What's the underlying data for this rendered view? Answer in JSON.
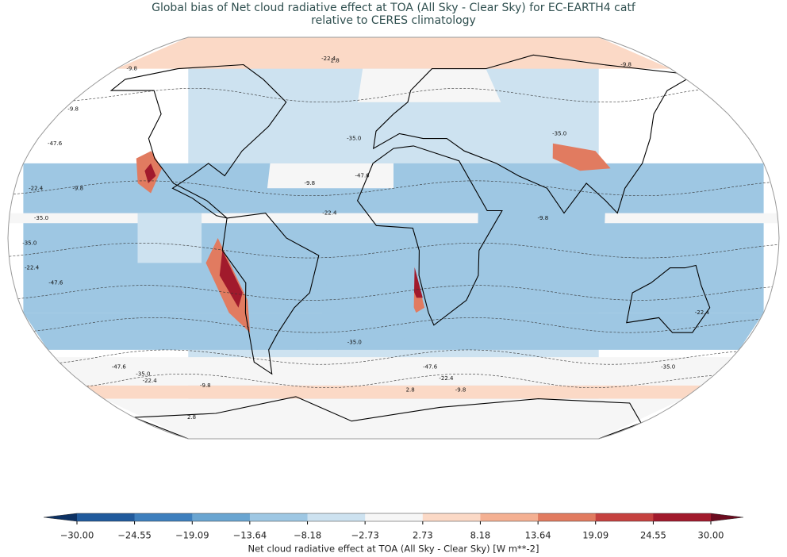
{
  "title": "Global bias of Net cloud radiative effect at TOA (All Sky - Clear Sky) for EC-EARTH4 catf",
  "subtitle": "relative to CERES climatology",
  "colorbar": {
    "label": "Net cloud radiative effect at TOA (All Sky - Clear Sky) [W m**-2]",
    "ticks": [
      {
        "value": -30,
        "label": "−30.00"
      },
      {
        "value": -24.55,
        "label": "−24.55"
      },
      {
        "value": -19.09,
        "label": "−19.09"
      },
      {
        "value": -13.64,
        "label": "−13.64"
      },
      {
        "value": -8.18,
        "label": "−8.18"
      },
      {
        "value": -2.73,
        "label": "−2.73"
      },
      {
        "value": 2.73,
        "label": "2.73"
      },
      {
        "value": 8.18,
        "label": "8.18"
      },
      {
        "value": 13.64,
        "label": "13.64"
      },
      {
        "value": 19.09,
        "label": "19.09"
      },
      {
        "value": 24.55,
        "label": "24.55"
      },
      {
        "value": 30,
        "label": "30.00"
      }
    ],
    "colors": [
      "#215a9c",
      "#3e7fbd",
      "#6aa5d1",
      "#9ec7e3",
      "#cde2f0",
      "#f6f6f6",
      "#fbd9c6",
      "#f4b092",
      "#e17b60",
      "#c5413f",
      "#a11a2c"
    ],
    "under_color": "#0d3163",
    "over_color": "#6b0b1f"
  },
  "contour_labels": [
    "-9.8",
    "-22.4",
    "-35.0",
    "-47.6",
    "-9.8",
    "-22.4",
    "-35.0",
    "-47.6",
    "-9.8",
    "-22.4",
    "-35.0",
    "-47.6",
    "-35.0",
    "-22.4",
    "-9.8",
    "2.8",
    "2.8",
    "2.8",
    "-47.6",
    "-35.0",
    "-22.4",
    "-9.8",
    "-35.0",
    "-22.4",
    "-9.8",
    "-47.6",
    "-35.0",
    "-22.4",
    "-9.8",
    "-9.8"
  ]
}
